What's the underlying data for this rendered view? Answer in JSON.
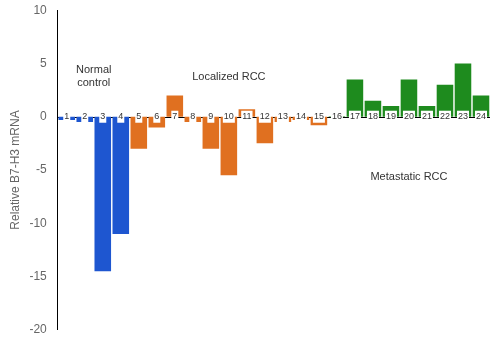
{
  "chart_data": {
    "type": "bar",
    "categories": [
      "1",
      "2",
      "3",
      "4",
      "5",
      "6",
      "7",
      "8",
      "9",
      "10",
      "11",
      "12",
      "13",
      "14",
      "15",
      "16",
      "17",
      "18",
      "19",
      "20",
      "21",
      "22",
      "23",
      "24"
    ],
    "values": [
      -0.3,
      -0.5,
      -14.5,
      -11.0,
      -3.0,
      -1.0,
      2.0,
      -0.5,
      -3.0,
      -5.5,
      0.7,
      -2.5,
      -0.5,
      -0.3,
      -0.8,
      0.05,
      3.5,
      1.5,
      1.0,
      3.5,
      1.0,
      3.0,
      5.0,
      2.0
    ],
    "colors": [
      "#1e56d0",
      "#1e56d0",
      "#1e56d0",
      "#1e56d0",
      "#e07020",
      "#e07020",
      "#e07020",
      "#e07020",
      "#e07020",
      "#e07020",
      "#e07020",
      "#e07020",
      "#e07020",
      "#e07020",
      "#e07020",
      "#1e8b1e",
      "#1e8b1e",
      "#1e8b1e",
      "#1e8b1e",
      "#1e8b1e",
      "#1e8b1e",
      "#1e8b1e",
      "#1e8b1e",
      "#1e8b1e"
    ],
    "ylabel": "Relative B7-H3 mRNA",
    "ylim": [
      -20,
      10
    ],
    "yticks": [
      -20,
      -15,
      -10,
      -5,
      0,
      5,
      10
    ],
    "grid": false,
    "annotations": [
      "Normal\ncontrol",
      "Localized RCC",
      "Metastatic RCC"
    ]
  }
}
